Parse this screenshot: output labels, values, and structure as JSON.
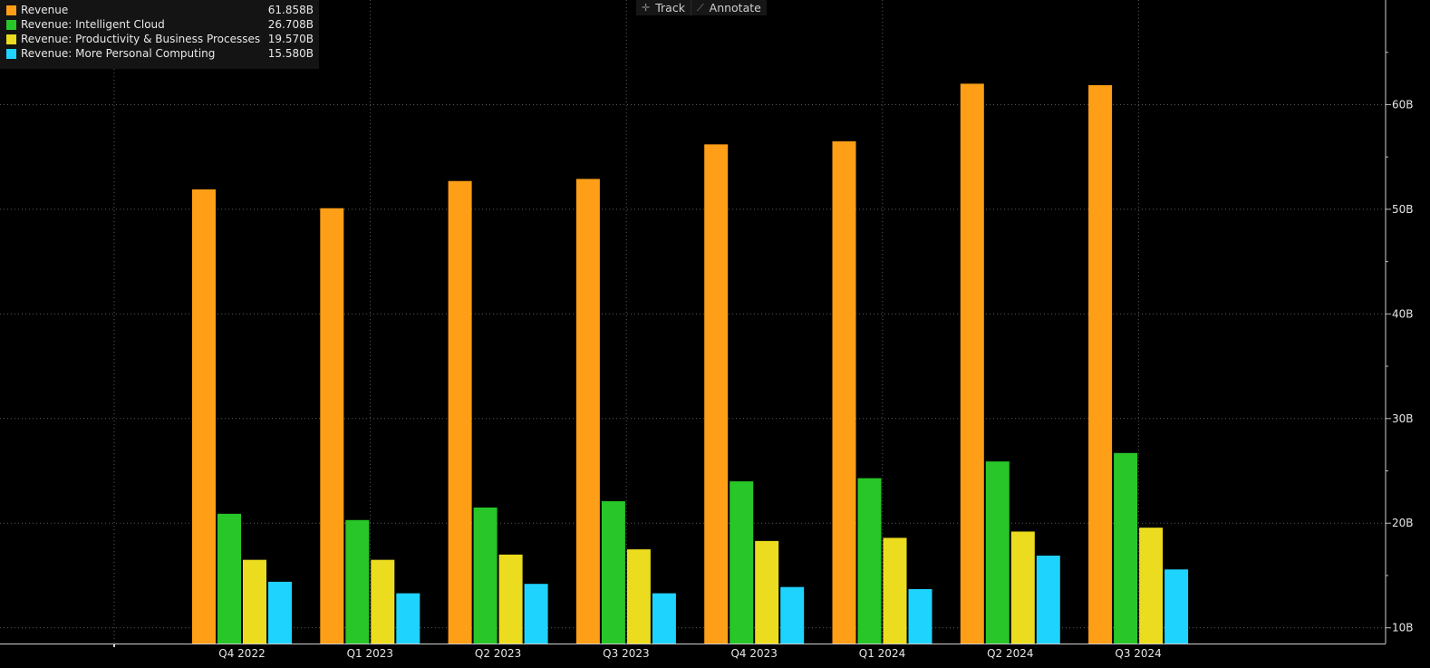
{
  "toolbar": {
    "track_label": "Track",
    "annotate_label": "Annotate"
  },
  "legend": [
    {
      "label": "Revenue",
      "value": "61.858B",
      "color": "#ff9f17"
    },
    {
      "label": "Revenue: Intelligent Cloud",
      "value": "26.708B",
      "color": "#28c628"
    },
    {
      "label": "Revenue: Productivity & Business Processes",
      "value": "19.570B",
      "color": "#ecdc1f"
    },
    {
      "label": "Revenue: More Personal Computing",
      "value": "15.580B",
      "color": "#1fd3ff"
    }
  ],
  "chart_data": {
    "type": "bar",
    "categories": [
      "Q4 2022",
      "Q1 2023",
      "Q2 2023",
      "Q3 2023",
      "Q4 2023",
      "Q1 2024",
      "Q2 2024",
      "Q3 2024"
    ],
    "series": [
      {
        "name": "Revenue",
        "color": "#ff9f17",
        "values": [
          51.9,
          50.1,
          52.7,
          52.9,
          56.2,
          56.5,
          62.0,
          61.858
        ]
      },
      {
        "name": "Revenue: Intelligent Cloud",
        "color": "#28c628",
        "values": [
          20.9,
          20.3,
          21.5,
          22.1,
          24.0,
          24.3,
          25.9,
          26.708
        ]
      },
      {
        "name": "Revenue: Productivity & Business Processes",
        "color": "#ecdc1f",
        "values": [
          16.5,
          16.5,
          17.0,
          17.5,
          18.3,
          18.6,
          19.2,
          19.57
        ]
      },
      {
        "name": "Revenue: More Personal Computing",
        "color": "#1fd3ff",
        "values": [
          14.4,
          13.3,
          14.2,
          13.3,
          13.9,
          13.7,
          16.9,
          15.58
        ]
      }
    ],
    "y_ticks": [
      10,
      20,
      30,
      40,
      50,
      60
    ],
    "y_tick_labels": [
      "10B",
      "20B",
      "30B",
      "40B",
      "50B",
      "60B"
    ],
    "ylim": [
      8.5,
      70
    ],
    "y_axis_side": "right",
    "grid": true,
    "legend_position": "top-left"
  }
}
